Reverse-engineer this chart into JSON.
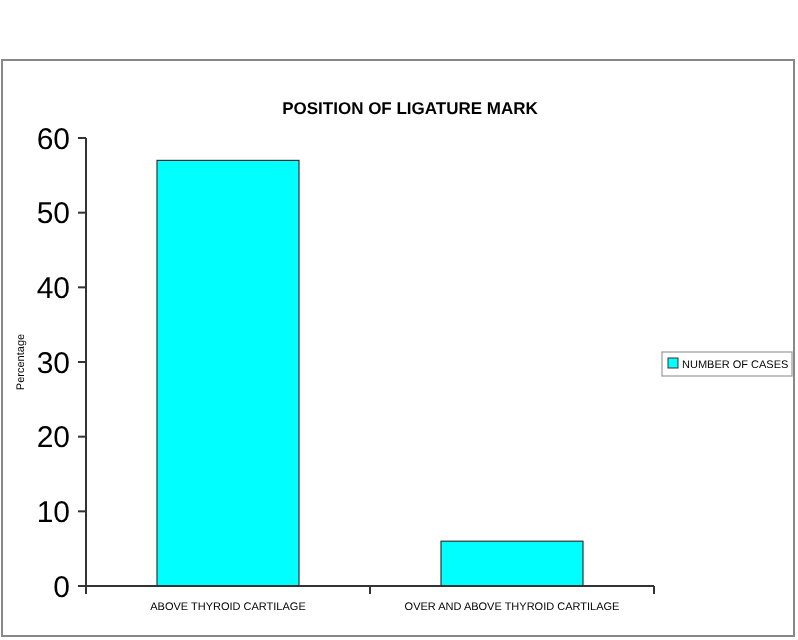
{
  "chart_data": {
    "type": "bar",
    "title": "POSITION OF LIGATURE MARK",
    "ylabel": "Percentage",
    "categories": [
      "ABOVE THYROID CARTILAGE",
      "OVER AND ABOVE THYROID CARTILAGE"
    ],
    "series": [
      {
        "name": "NUMBER OF CASES",
        "color": "#00ffff",
        "values": [
          57,
          6
        ]
      }
    ],
    "ylim": [
      0,
      60
    ],
    "yticks": [
      0,
      10,
      20,
      30,
      40,
      50,
      60
    ],
    "grid": false,
    "legend": "right"
  }
}
